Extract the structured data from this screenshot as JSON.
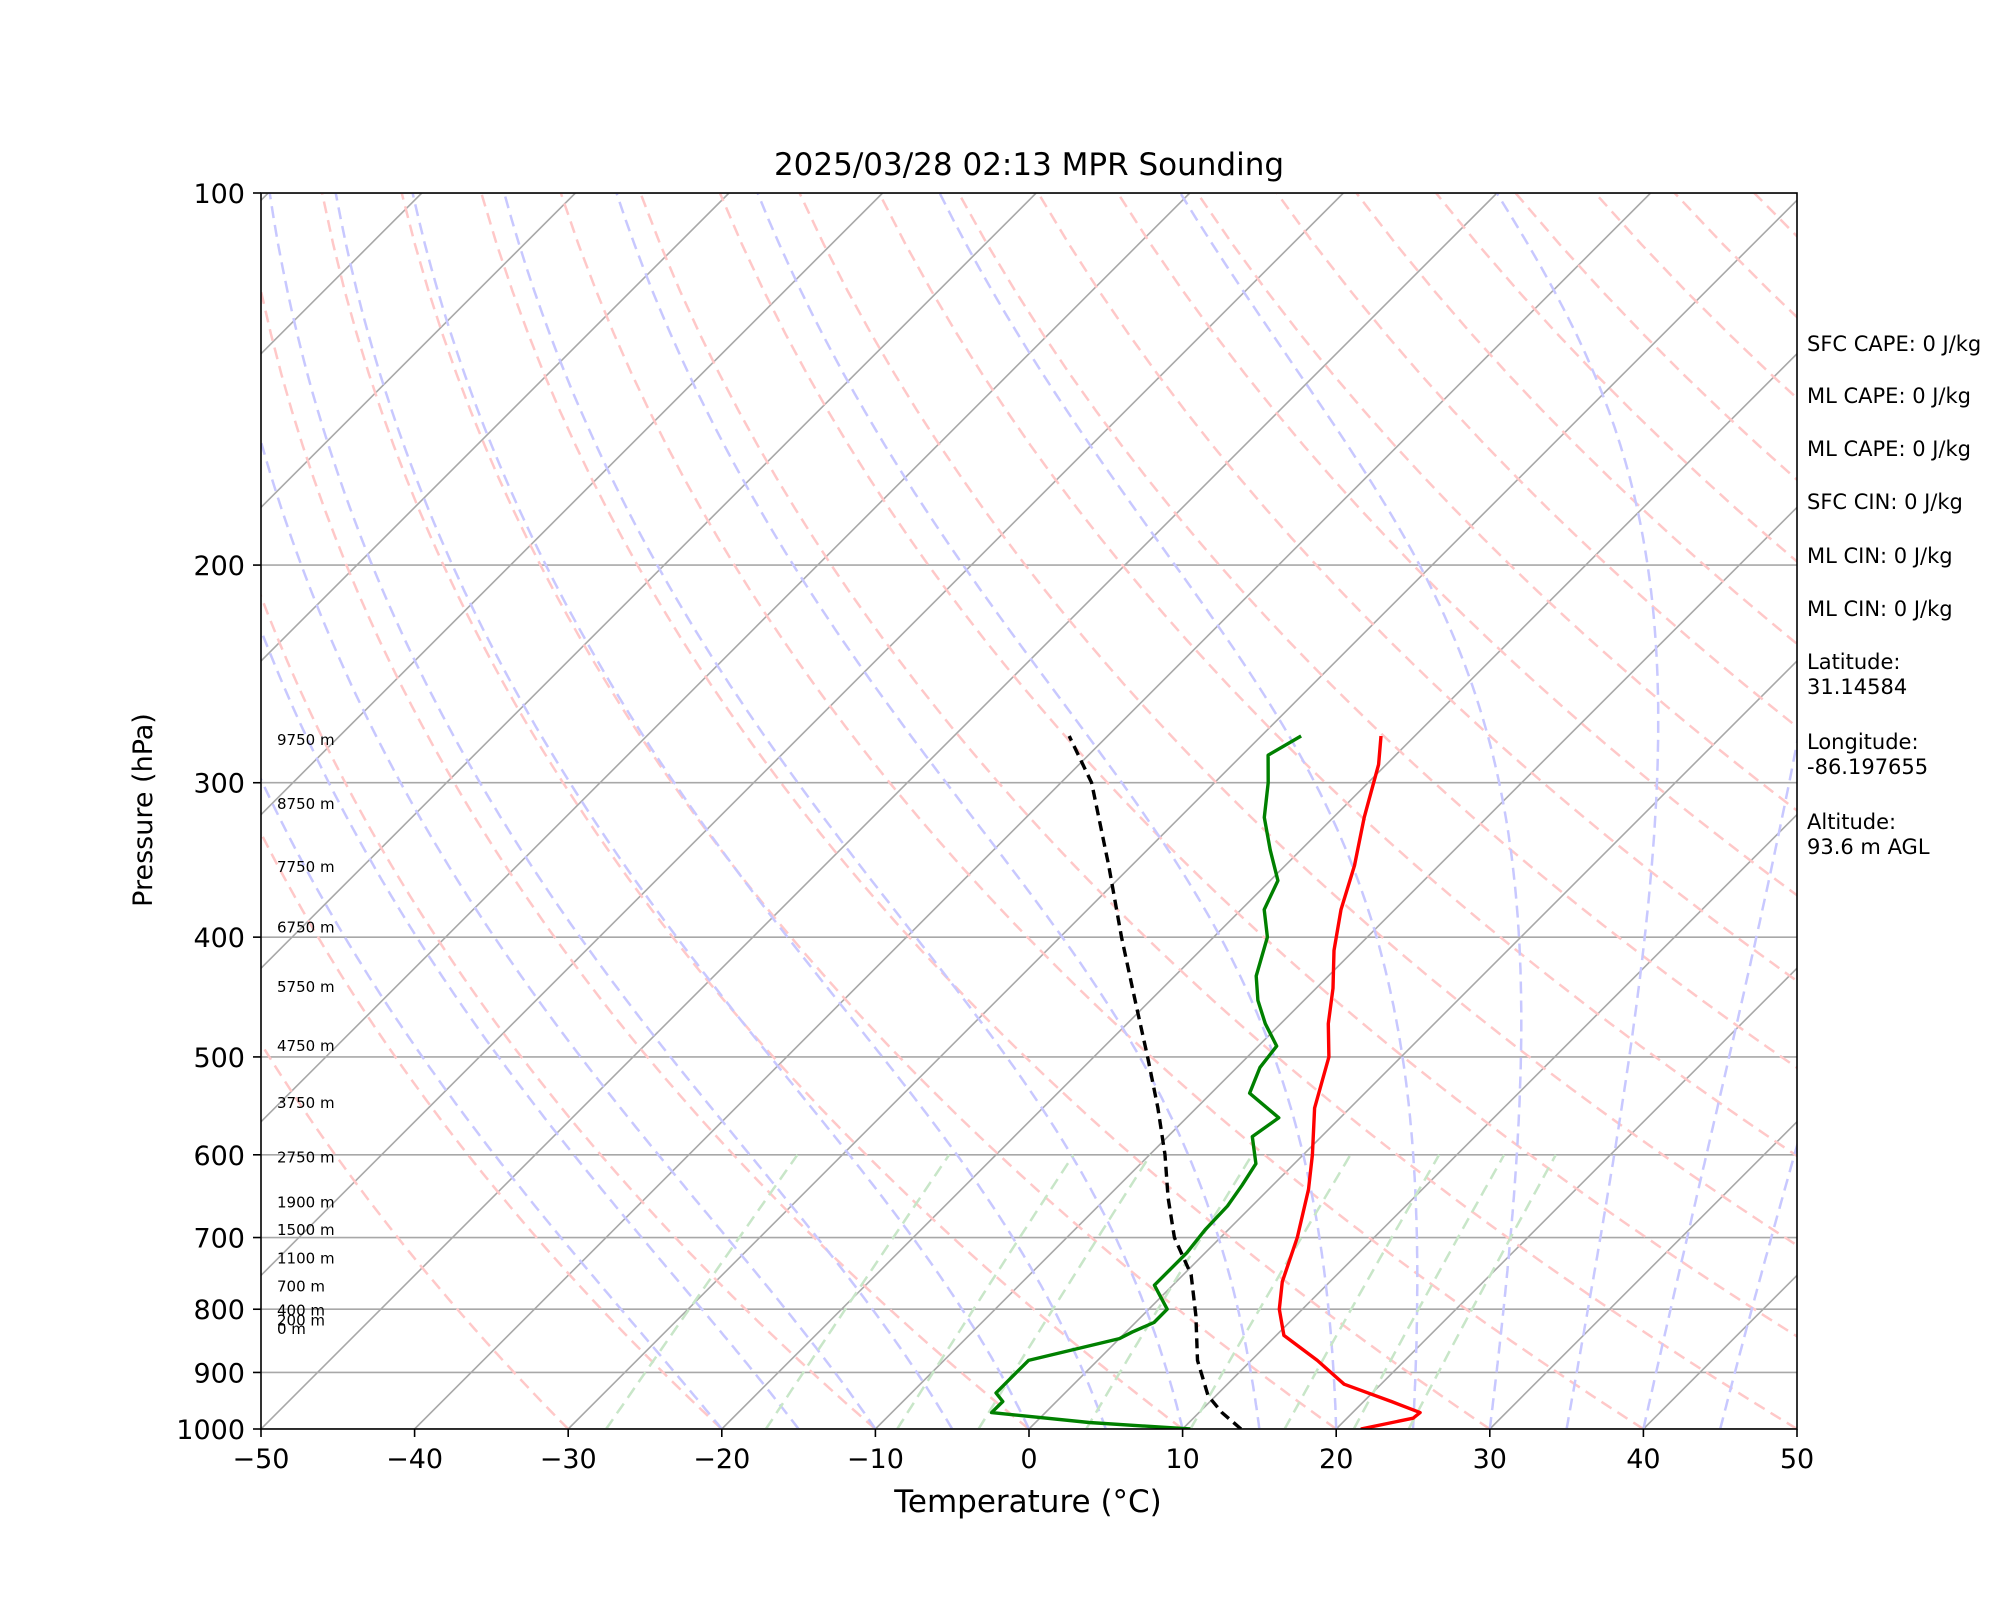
{
  "chart_data": {
    "type": "line",
    "title": "2025/03/28 02:13 MPR Sounding",
    "xlabel": "Temperature (°C)",
    "ylabel": "Pressure (hPa)",
    "xlim": [
      -50,
      50
    ],
    "ylim": [
      1000,
      100
    ],
    "y_scale": "log",
    "grid": true,
    "x_ticks": [
      "−50",
      "−40",
      "−30",
      "−20",
      "−10",
      "0",
      "10",
      "20",
      "30",
      "40",
      "50"
    ],
    "y_ticks": [
      "100",
      "200",
      "300",
      "400",
      "500",
      "600",
      "700",
      "800",
      "900",
      "1000"
    ],
    "height_labels": [
      "9750 m",
      "8750 m",
      "7750 m",
      "6750 m",
      "5750 m",
      "4750 m",
      "3750 m",
      "2750 m",
      "1900 m",
      "1500 m",
      "1100 m",
      "700 m",
      "400 m",
      "200 m",
      "0 m"
    ],
    "height_label_pressures": [
      277,
      312,
      351,
      393,
      439,
      490,
      545,
      603,
      656,
      690,
      728,
      767,
      802,
      817,
      830
    ],
    "series": [
      {
        "color": "#ff0000",
        "points": [
          [
            21.6,
            1000
          ],
          [
            24.3,
            980
          ],
          [
            24.4,
            970
          ],
          [
            21.8,
            950
          ],
          [
            17.6,
            920
          ],
          [
            14.3,
            880
          ],
          [
            10.5,
            840
          ],
          [
            8.5,
            800
          ],
          [
            6.9,
            760
          ],
          [
            5.0,
            700
          ],
          [
            2.6,
            640
          ],
          [
            0.6,
            600
          ],
          [
            -2.3,
            550
          ],
          [
            -4.7,
            500
          ],
          [
            -6.9,
            470
          ],
          [
            -8.9,
            440
          ],
          [
            -11.3,
            410
          ],
          [
            -13.5,
            380
          ],
          [
            -15.5,
            350
          ],
          [
            -18.0,
            320
          ],
          [
            -20.5,
            290
          ],
          [
            -22.2,
            275
          ]
        ]
      },
      {
        "color": "#008000",
        "points": [
          [
            10.5,
            1000
          ],
          [
            3.5,
            988
          ],
          [
            -3.5,
            970
          ],
          [
            -3.5,
            950
          ],
          [
            -4.5,
            935
          ],
          [
            -4.5,
            880
          ],
          [
            0,
            845
          ],
          [
            0.4,
            835
          ],
          [
            1.2,
            820
          ],
          [
            1.2,
            800
          ],
          [
            -1.2,
            765
          ],
          [
            -1.2,
            720
          ],
          [
            -1.5,
            690
          ],
          [
            -1.6,
            660
          ],
          [
            -2.0,
            635
          ],
          [
            -2.5,
            610
          ],
          [
            -4.5,
            580
          ],
          [
            -4.0,
            560
          ],
          [
            -7.5,
            535
          ],
          [
            -8.5,
            510
          ],
          [
            -8.8,
            490
          ],
          [
            -11.0,
            470
          ],
          [
            -13.0,
            450
          ],
          [
            -14.7,
            430
          ],
          [
            -16.5,
            400
          ],
          [
            -18.5,
            380
          ],
          [
            -19.5,
            360
          ],
          [
            -22.0,
            340
          ],
          [
            -24.5,
            320
          ],
          [
            -26.5,
            300
          ],
          [
            -28.3,
            285
          ],
          [
            -27.4,
            275
          ]
        ]
      },
      {
        "color": "#000000",
        "dash": "dashed",
        "points": [
          [
            13.8,
            1000
          ],
          [
            11.5,
            970
          ],
          [
            9.5,
            940
          ],
          [
            6.5,
            880
          ],
          [
            3.5,
            810
          ],
          [
            0.5,
            750
          ],
          [
            -3.0,
            700
          ],
          [
            -6.0,
            650
          ],
          [
            -9.0,
            600
          ],
          [
            -12.5,
            550
          ],
          [
            -16.5,
            500
          ],
          [
            -21.0,
            450
          ],
          [
            -26.0,
            400
          ],
          [
            -31.5,
            350
          ],
          [
            -38.0,
            300
          ],
          [
            -42.5,
            275
          ]
        ]
      }
    ],
    "colors": {
      "isotherm": "#a8a8a8",
      "dry_adiabat": "#ffc8c8",
      "moist_adiabat": "#c8c8ff",
      "mixing_ratio": "#c8e6c8"
    }
  },
  "stats": [
    "SFC CAPE: 0 J/kg",
    "ML CAPE: 0 J/kg",
    "ML CAPE: 0 J/kg",
    "SFC CIN: 0 J/kg",
    "ML CIN: 0 J/kg",
    "ML CIN: 0 J/kg",
    "Latitude:\n31.14584",
    "Longitude:\n-86.197655",
    "Altitude:\n93.6 m AGL"
  ]
}
